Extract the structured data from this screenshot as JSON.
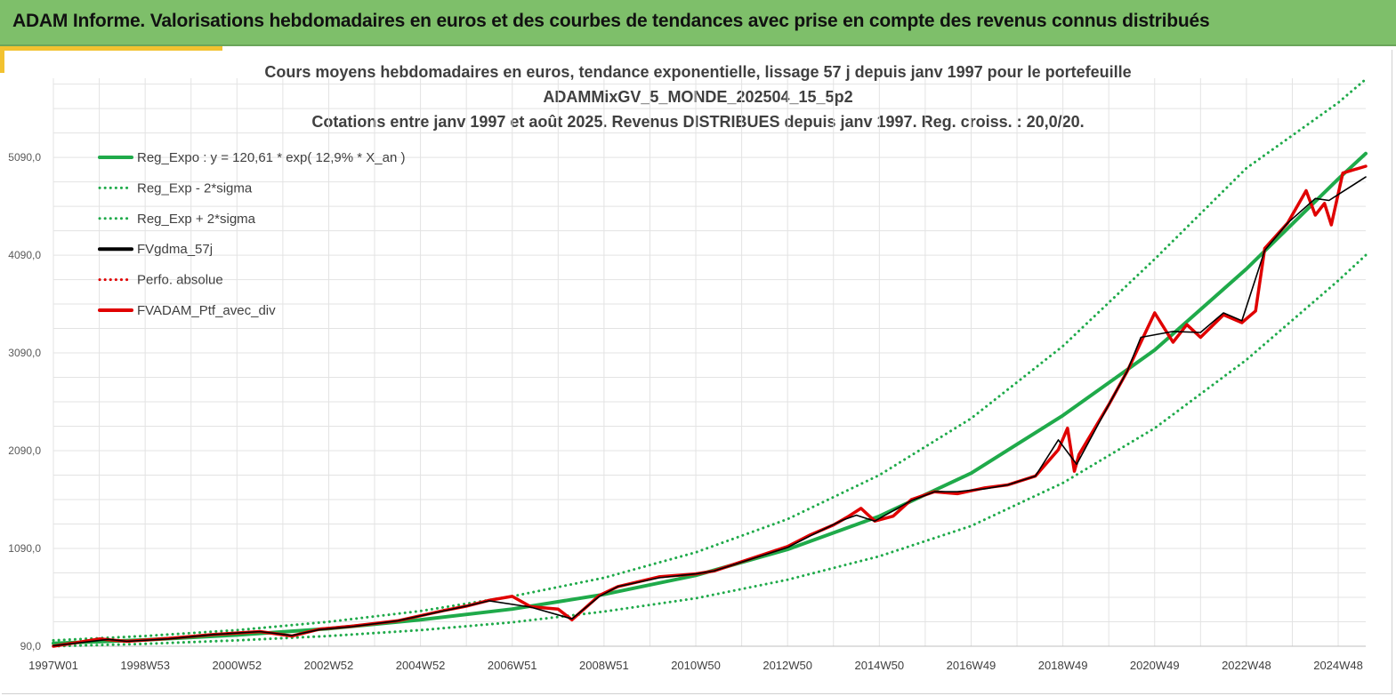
{
  "banner": {
    "title": "ADAM Informe. Valorisations hebdomadaires en euros et des courbes de tendances avec prise en compte des revenus connus distribués"
  },
  "chart_data": {
    "type": "line",
    "title_lines": [
      "Cours moyens hebdomadaires  en euros, tendance exponentielle, lissage 57 j depuis janv 1997 pour le portefeuille",
      "ADAMMixGV_5_MONDE_202504_15_5p2",
      "Cotations  entre janv 1997 et août  2025. Revenus DISTRIBUES depuis janv 1997. Reg. croiss. : 20,0/20."
    ],
    "xlabel": "",
    "ylabel": "",
    "x_range_years": [
      1997.0,
      2025.6
    ],
    "ylim": [
      90,
      5900
    ],
    "y_ticks": [
      90,
      1090,
      2090,
      3090,
      4090,
      5090
    ],
    "y_tick_labels": [
      "90,0",
      "1090,0",
      "2090,0",
      "3090,0",
      "4090,0",
      "5090,0"
    ],
    "x_ticks": [
      1997.0,
      1999.0,
      2001.0,
      2003.0,
      2005.0,
      2007.0,
      2009.0,
      2011.0,
      2013.0,
      2015.0,
      2017.0,
      2019.0,
      2021.0,
      2023.0,
      2025.0
    ],
    "x_tick_labels": [
      "1997W01",
      "1998W53",
      "2000W52",
      "2002W52",
      "2004W52",
      "2006W51",
      "2008W51",
      "2010W50",
      "2012W50",
      "2014W50",
      "2016W49",
      "2018W49",
      "2020W49",
      "2022W48",
      "2024W48"
    ],
    "grid": true,
    "legend_position": "top-left",
    "series": [
      {
        "name": "Reg_Expo : y = 120,61 * exp( 12,9% *  X_an )",
        "color": "#1faa4a",
        "style": "solid",
        "x": [
          1997.0,
          1999.0,
          2001.0,
          2003.0,
          2005.0,
          2007.0,
          2009.0,
          2011.0,
          2013.0,
          2015.0,
          2017.0,
          2019.0,
          2021.0,
          2023.0,
          2025.0,
          2025.6
        ],
        "y": [
          120,
          155,
          205,
          270,
          360,
          470,
          620,
          815,
          1080,
          1420,
          1860,
          2450,
          3120,
          3950,
          4870,
          5130
        ]
      },
      {
        "name": "Reg_Exp - 2*sigma",
        "color": "#1faa4a",
        "style": "dotted",
        "x": [
          1997.0,
          1999.0,
          2001.0,
          2003.0,
          2005.0,
          2007.0,
          2009.0,
          2011.0,
          2013.0,
          2015.0,
          2017.0,
          2019.0,
          2021.0,
          2023.0,
          2025.0,
          2025.6
        ],
        "y": [
          90,
          115,
          150,
          195,
          255,
          335,
          445,
          580,
          770,
          1010,
          1320,
          1760,
          2320,
          3020,
          3830,
          4090
        ]
      },
      {
        "name": "Reg_Exp + 2*sigma",
        "color": "#1faa4a",
        "style": "dotted",
        "x": [
          1997.0,
          1999.0,
          2001.0,
          2003.0,
          2005.0,
          2007.0,
          2009.0,
          2011.0,
          2013.0,
          2015.0,
          2017.0,
          2019.0,
          2021.0,
          2023.0,
          2025.0,
          2025.6
        ],
        "y": [
          150,
          195,
          255,
          340,
          450,
          600,
          790,
          1050,
          1390,
          1840,
          2420,
          3160,
          4050,
          4980,
          5650,
          5890
        ]
      },
      {
        "name": "FVgdma_57j",
        "color": "#000000",
        "style": "solid",
        "x": [
          1997.0,
          1998.2,
          1998.6,
          1999.5,
          2000.5,
          2001.5,
          2002.2,
          2002.8,
          2003.5,
          2004.5,
          2005.5,
          2006.0,
          2006.5,
          2007.4,
          2008.3,
          2008.9,
          2009.3,
          2010.2,
          2011.0,
          2011.4,
          2012.0,
          2013.0,
          2013.5,
          2014.2,
          2014.5,
          2014.9,
          2015.7,
          2016.2,
          2016.7,
          2017.3,
          2017.8,
          2018.4,
          2018.9,
          2019.3,
          2020.0,
          2020.4,
          2020.7,
          2021.4,
          2022.0,
          2022.5,
          2022.9,
          2023.4,
          2023.9,
          2024.5,
          2024.8,
          2025.1,
          2025.6
        ],
        "y": [
          95,
          160,
          140,
          165,
          210,
          240,
          200,
          260,
          290,
          350,
          450,
          500,
          555,
          490,
          370,
          600,
          700,
          790,
          830,
          860,
          950,
          1100,
          1220,
          1380,
          1430,
          1370,
          1580,
          1670,
          1670,
          1700,
          1740,
          1830,
          2200,
          1950,
          2560,
          2900,
          3250,
          3310,
          3300,
          3500,
          3420,
          4140,
          4420,
          4670,
          4650,
          4740,
          4890
        ]
      },
      {
        "name": "Perfo. absolue",
        "color": "#e00000",
        "style": "dotted",
        "x": [],
        "y": []
      },
      {
        "name": "FVADAM_Ptf_avec_div",
        "color": "#e00000",
        "style": "solid",
        "x": [
          1997.0,
          1998.0,
          1998.6,
          1999.5,
          2000.5,
          2001.5,
          2002.2,
          2002.8,
          2003.5,
          2004.5,
          2005.5,
          2006.0,
          2006.5,
          2007.0,
          2007.4,
          2008.0,
          2008.3,
          2008.9,
          2009.3,
          2010.2,
          2011.0,
          2011.4,
          2012.0,
          2013.0,
          2013.5,
          2014.0,
          2014.3,
          2014.6,
          2014.9,
          2015.3,
          2015.7,
          2016.2,
          2016.7,
          2017.3,
          2017.8,
          2018.4,
          2018.9,
          2019.1,
          2019.25,
          2019.35,
          2020.0,
          2020.4,
          2020.8,
          2021.0,
          2021.4,
          2021.7,
          2022.0,
          2022.5,
          2022.9,
          2023.2,
          2023.4,
          2023.9,
          2024.3,
          2024.5,
          2024.7,
          2024.85,
          2025.1,
          2025.6
        ],
        "y": [
          90,
          165,
          140,
          170,
          210,
          240,
          195,
          265,
          295,
          350,
          455,
          500,
          560,
          600,
          495,
          470,
          360,
          610,
          700,
          800,
          830,
          860,
          955,
          1110,
          1230,
          1330,
          1410,
          1500,
          1370,
          1420,
          1590,
          1670,
          1650,
          1710,
          1740,
          1830,
          2100,
          2320,
          1880,
          2050,
          2560,
          2900,
          3300,
          3500,
          3200,
          3380,
          3250,
          3480,
          3400,
          3520,
          4160,
          4420,
          4750,
          4500,
          4620,
          4400,
          4930,
          5000
        ]
      }
    ]
  }
}
